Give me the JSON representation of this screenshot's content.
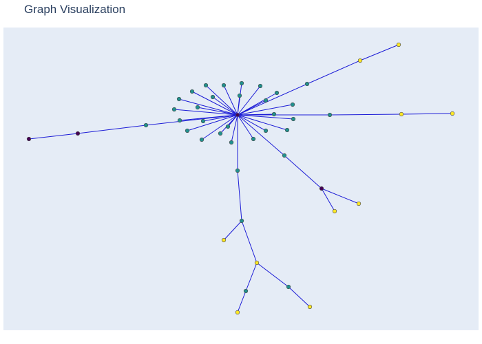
{
  "title": "Graph Visualization",
  "colors": {
    "edge": "#1b1bd6",
    "background": "#e5ecf6",
    "title": "#2a3f5f",
    "node_levels": {
      "dark": "#440154",
      "mid": "#21908d",
      "light": "#fde725"
    }
  },
  "graph": {
    "nodes": [
      {
        "id": "hub",
        "level": "dark"
      },
      {
        "id": "n1",
        "level": "mid"
      },
      {
        "id": "n2",
        "level": "mid"
      },
      {
        "id": "n3",
        "level": "mid"
      },
      {
        "id": "n4",
        "level": "mid"
      },
      {
        "id": "n5",
        "level": "mid"
      },
      {
        "id": "n6",
        "level": "mid"
      },
      {
        "id": "n7",
        "level": "mid"
      },
      {
        "id": "n8",
        "level": "mid"
      },
      {
        "id": "n9",
        "level": "mid"
      },
      {
        "id": "n10",
        "level": "mid"
      },
      {
        "id": "n11",
        "level": "mid"
      },
      {
        "id": "n12",
        "level": "mid"
      },
      {
        "id": "n13",
        "level": "mid"
      },
      {
        "id": "n14",
        "level": "mid"
      },
      {
        "id": "n15",
        "level": "mid"
      },
      {
        "id": "n16",
        "level": "mid"
      },
      {
        "id": "n17",
        "level": "mid"
      },
      {
        "id": "n18",
        "level": "mid"
      },
      {
        "id": "n19",
        "level": "mid"
      },
      {
        "id": "n20",
        "level": "mid"
      },
      {
        "id": "n21",
        "level": "mid"
      },
      {
        "id": "n22",
        "level": "mid"
      },
      {
        "id": "n23",
        "level": "mid"
      },
      {
        "id": "n24",
        "level": "mid"
      },
      {
        "id": "n25",
        "level": "mid"
      },
      {
        "id": "ne1",
        "level": "mid"
      },
      {
        "id": "ne2",
        "level": "light"
      },
      {
        "id": "ne3",
        "level": "light"
      },
      {
        "id": "e1",
        "level": "mid"
      },
      {
        "id": "e2",
        "level": "light"
      },
      {
        "id": "e3",
        "level": "light"
      },
      {
        "id": "w1",
        "level": "mid"
      },
      {
        "id": "w2",
        "level": "dark"
      },
      {
        "id": "w3",
        "level": "dark"
      },
      {
        "id": "se1",
        "level": "mid"
      },
      {
        "id": "se2",
        "level": "dark"
      },
      {
        "id": "se3",
        "level": "light"
      },
      {
        "id": "se4",
        "level": "light"
      },
      {
        "id": "s1",
        "level": "mid"
      },
      {
        "id": "s2",
        "level": "mid"
      },
      {
        "id": "s3",
        "level": "light"
      },
      {
        "id": "s4",
        "level": "light"
      },
      {
        "id": "s5",
        "level": "mid"
      },
      {
        "id": "s6",
        "level": "light"
      },
      {
        "id": "s7",
        "level": "mid"
      },
      {
        "id": "s8",
        "level": "light"
      }
    ],
    "edges": [
      [
        "hub",
        "n1"
      ],
      [
        "hub",
        "n2"
      ],
      [
        "hub",
        "n3"
      ],
      [
        "hub",
        "n4"
      ],
      [
        "hub",
        "n5"
      ],
      [
        "hub",
        "n6"
      ],
      [
        "hub",
        "n7"
      ],
      [
        "hub",
        "n8"
      ],
      [
        "hub",
        "n9"
      ],
      [
        "hub",
        "n10"
      ],
      [
        "hub",
        "n11"
      ],
      [
        "hub",
        "n12"
      ],
      [
        "hub",
        "n13"
      ],
      [
        "hub",
        "n14"
      ],
      [
        "hub",
        "n15"
      ],
      [
        "hub",
        "n16"
      ],
      [
        "hub",
        "n17"
      ],
      [
        "hub",
        "n18"
      ],
      [
        "hub",
        "n19"
      ],
      [
        "hub",
        "n20"
      ],
      [
        "hub",
        "n21"
      ],
      [
        "hub",
        "n22"
      ],
      [
        "hub",
        "n23"
      ],
      [
        "hub",
        "n24"
      ],
      [
        "hub",
        "n25"
      ],
      [
        "hub",
        "ne1"
      ],
      [
        "ne1",
        "ne2"
      ],
      [
        "ne2",
        "ne3"
      ],
      [
        "hub",
        "e1"
      ],
      [
        "e1",
        "e2"
      ],
      [
        "e2",
        "e3"
      ],
      [
        "hub",
        "w1"
      ],
      [
        "w1",
        "w2"
      ],
      [
        "w2",
        "w3"
      ],
      [
        "hub",
        "se1"
      ],
      [
        "se1",
        "se2"
      ],
      [
        "se2",
        "se3"
      ],
      [
        "se2",
        "se4"
      ],
      [
        "hub",
        "s1"
      ],
      [
        "s1",
        "s2"
      ],
      [
        "s2",
        "s3"
      ],
      [
        "s2",
        "s4"
      ],
      [
        "s4",
        "s5"
      ],
      [
        "s5",
        "s6"
      ],
      [
        "s4",
        "s7"
      ],
      [
        "s7",
        "s8"
      ]
    ]
  }
}
